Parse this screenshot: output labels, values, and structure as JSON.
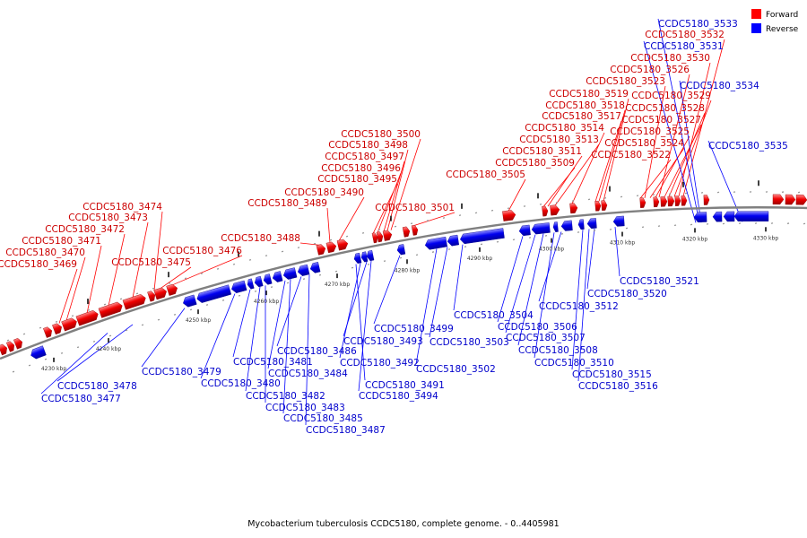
{
  "caption": "Mycobacterium tuberculosis CCDC5180, complete genome. - 0..4405981",
  "legend": [
    {
      "label": "Forward",
      "color": "#ff0000"
    },
    {
      "label": "Reverse",
      "color": "#0000ff"
    }
  ],
  "colors": {
    "forward": "#ff0000",
    "reverse": "#0000ff",
    "backbone": "#808080"
  },
  "scale_ticks": [
    "4230 kbp",
    "4240 kbp",
    "4250 kbp",
    "4260 kbp",
    "4270 kbp",
    "4280 kbp",
    "4290 kbp",
    "4300 kbp",
    "4310 kbp",
    "4320 kbp",
    "4330 kbp"
  ],
  "forward_labels": [
    "CCDC5180_3469",
    "CCDC5180_3470",
    "CCDC5180_3471",
    "CCDC5180_3472",
    "CCDC5180_3473",
    "CCDC5180_3474",
    "CCDC5180_3475",
    "CCDC5180_3476",
    "CCDC5180_3488",
    "CCDC5180_3489",
    "CCDC5180_3490",
    "CCDC5180_3495",
    "CCDC5180_3496",
    "CCDC5180_3497",
    "CCDC5180_3498",
    "CCDC5180_3500",
    "CCDC5180_3501",
    "CCDC5180_3505",
    "CCDC5180_3509",
    "CCDC5180_3511",
    "CCDC5180_3513",
    "CCDC5180_3514",
    "CCDC5180_3517",
    "CCDC5180_3518",
    "CCDC5180_3519",
    "CCDC5180_3522",
    "CCDC5180_3523",
    "CCDC5180_3524",
    "CCDC5180_3525",
    "CCDC5180_3526",
    "CCDC5180_3527",
    "CCDC5180_3528",
    "CCDC5180_3529",
    "CCDC5180_3530",
    "CCDC5180_3532"
  ],
  "reverse_labels": [
    "CCDC5180_3477",
    "CCDC5180_3478",
    "CCDC5180_3479",
    "CCDC5180_3480",
    "CCDC5180_3481",
    "CCDC5180_3482",
    "CCDC5180_3483",
    "CCDC5180_3484",
    "CCDC5180_3485",
    "CCDC5180_3486",
    "CCDC5180_3487",
    "CCDC5180_3491",
    "CCDC5180_3492",
    "CCDC5180_3493",
    "CCDC5180_3494",
    "CCDC5180_3499",
    "CCDC5180_3502",
    "CCDC5180_3503",
    "CCDC5180_3504",
    "CCDC5180_3506",
    "CCDC5180_3507",
    "CCDC5180_3508",
    "CCDC5180_3510",
    "CCDC5180_3512",
    "CCDC5180_3515",
    "CCDC5180_3516",
    "CCDC5180_3520",
    "CCDC5180_3521",
    "CCDC5180_3531",
    "CCDC5180_3533",
    "CCDC5180_3534",
    "CCDC5180_3535"
  ]
}
